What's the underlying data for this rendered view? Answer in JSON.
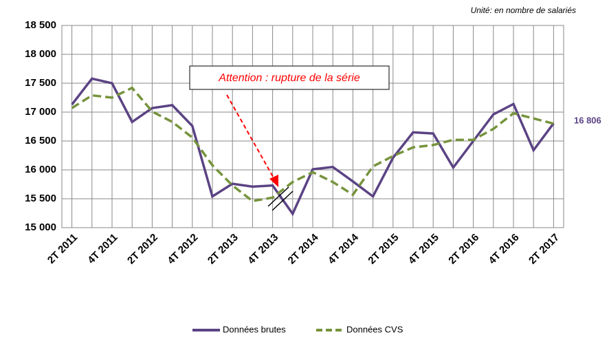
{
  "chart_data": {
    "type": "line",
    "unit_note": "Unité: en nombre de salariés",
    "annotation": "Attention : rupture de la série",
    "end_label": "16 806",
    "categories": [
      "2T 2011",
      null,
      "4T 2011",
      null,
      "2T 2012",
      null,
      "4T 2012",
      null,
      "2T 2013",
      null,
      "4T 2013",
      null,
      "2T 2014",
      null,
      "4T 2014",
      null,
      "2T 2015",
      null,
      "4T 2015",
      null,
      "2T 2016",
      null,
      "4T 2016",
      null,
      "2T 2017"
    ],
    "series": [
      {
        "name": "Données brutes",
        "color": "#5b4384",
        "dash": false,
        "values": [
          17130,
          17580,
          17500,
          16830,
          17070,
          17120,
          16760,
          15540,
          15760,
          15710,
          15730,
          15240,
          16010,
          16050,
          15800,
          15540,
          16210,
          16650,
          16630,
          16040,
          16500,
          16960,
          17140,
          16340,
          16806
        ]
      },
      {
        "name": "Données CVS",
        "color": "#76933c",
        "dash": true,
        "values": [
          17070,
          17290,
          17250,
          17420,
          17010,
          16830,
          16560,
          16080,
          15730,
          15460,
          15520,
          15790,
          15960,
          15790,
          15570,
          16060,
          16240,
          16390,
          16430,
          16520,
          16520,
          16710,
          16980,
          16890,
          16800
        ]
      }
    ],
    "ylim": [
      15000,
      18500
    ],
    "yticks": [
      {
        "value": 15000,
        "label": "15 000"
      },
      {
        "value": 15500,
        "label": "15 500"
      },
      {
        "value": 16000,
        "label": "16 000"
      },
      {
        "value": 16500,
        "label": "16 500"
      },
      {
        "value": 17000,
        "label": "17 000"
      },
      {
        "value": 17500,
        "label": "17 500"
      },
      {
        "value": 18000,
        "label": "18 000"
      },
      {
        "value": 18500,
        "label": "18 500"
      }
    ],
    "grid": true
  }
}
